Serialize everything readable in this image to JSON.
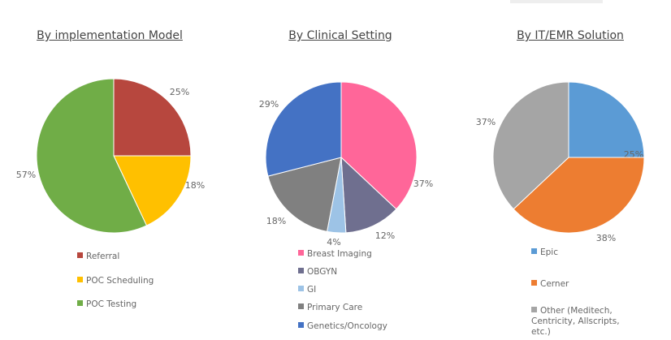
{
  "chart_data": [
    {
      "type": "pie",
      "title": "By implementation Model",
      "slices": [
        {
          "label": "Referral",
          "value": 25,
          "value_label": "25%",
          "color": "#B7473E"
        },
        {
          "label": "POC Scheduling",
          "value": 18,
          "value_label": "18%",
          "color": "#FFC000"
        },
        {
          "label": "POC Testing",
          "value": 57,
          "value_label": "57%",
          "color": "#70AD47"
        }
      ],
      "legend_position": "bottom"
    },
    {
      "type": "pie",
      "title": "By Clinical Setting",
      "slices": [
        {
          "label": "Breast Imaging",
          "value": 37,
          "value_label": "37%",
          "color": "#FF6699"
        },
        {
          "label": "OBGYN",
          "value": 12,
          "value_label": "12%",
          "color": "#6F6F8F"
        },
        {
          "label": "GI",
          "value": 4,
          "value_label": "4%",
          "color": "#9DC3E6"
        },
        {
          "label": "Primary Care",
          "value": 18,
          "value_label": "18%",
          "color": "#808080"
        },
        {
          "label": "Genetics/Oncology",
          "value": 29,
          "value_label": "29%",
          "color": "#4472C4"
        }
      ],
      "legend_position": "bottom"
    },
    {
      "type": "pie",
      "title": "By IT/EMR Solution",
      "slices": [
        {
          "label": "Epic",
          "value": 25,
          "value_label": "25%",
          "color": "#5B9BD5"
        },
        {
          "label": "Cerner",
          "value": 38,
          "value_label": "38%",
          "color": "#ED7D31"
        },
        {
          "label": "Other (Meditech, Centricity, Allscripts, etc.)",
          "value": 37,
          "value_label": "37%",
          "color": "#A5A5A5"
        }
      ],
      "legend_position": "bottom"
    }
  ]
}
